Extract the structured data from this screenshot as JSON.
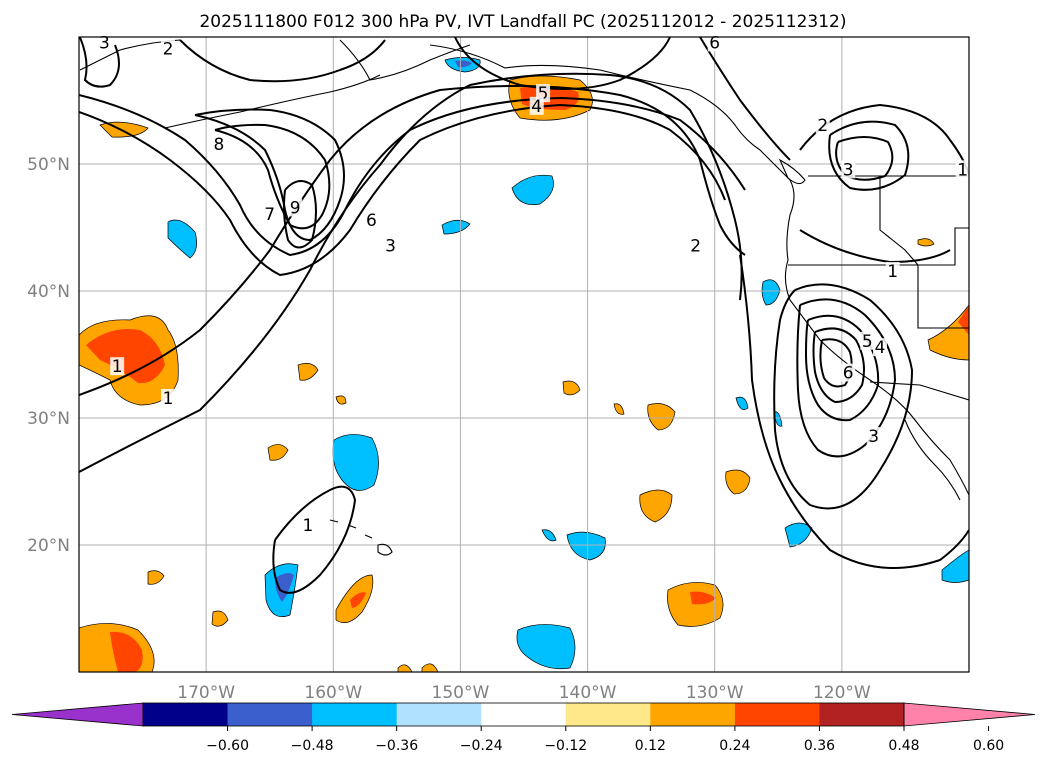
{
  "chart_data": {
    "type": "contour-map",
    "title": "2025111800 F012 300 hPa PV, IVT Landfall PC (2025112012 - 2025112312)",
    "map": {
      "lon_range": [
        -180,
        -110
      ],
      "lat_range": [
        10,
        60
      ],
      "lon_ticks": [
        -170,
        -160,
        -150,
        -140,
        -130,
        -120
      ],
      "lon_tick_labels": [
        "170°W",
        "160°W",
        "150°W",
        "140°W",
        "130°W",
        "120°W"
      ],
      "lat_ticks": [
        20,
        30,
        40,
        50
      ],
      "lat_tick_labels": [
        "20°N",
        "30°N",
        "40°N",
        "50°N"
      ],
      "grid": true
    },
    "colorbar": {
      "extend": "both",
      "bounds": [
        -0.6,
        -0.48,
        -0.36,
        -0.24,
        -0.12,
        0.12,
        0.24,
        0.36,
        0.48,
        0.6
      ],
      "tick_labels": [
        "−0.60",
        "−0.48",
        "−0.36",
        "−0.24",
        "−0.12",
        "0.12",
        "0.24",
        "0.36",
        "0.48",
        "0.60"
      ],
      "colors": [
        "#9932cc",
        "#00008b",
        "#3a5fcd",
        "#00bfff",
        "#b0e2ff",
        "#ffffff",
        "#ffe88a",
        "#ffa500",
        "#ff4500",
        "#b22222",
        "#ff82ab"
      ]
    },
    "contour_labels": [
      {
        "value": "2",
        "lon": -173,
        "lat": 59
      },
      {
        "value": "3",
        "lon": -178,
        "lat": 59.5
      },
      {
        "value": "8",
        "lon": -169,
        "lat": 51.5
      },
      {
        "value": "9",
        "lon": -163,
        "lat": 46.5
      },
      {
        "value": "7",
        "lon": -165,
        "lat": 46
      },
      {
        "value": "6",
        "lon": -157,
        "lat": 45.5
      },
      {
        "value": "3",
        "lon": -155.5,
        "lat": 43.5
      },
      {
        "value": "5",
        "lon": -143.5,
        "lat": 55.5
      },
      {
        "value": "4",
        "lon": -144,
        "lat": 54.5
      },
      {
        "value": "2",
        "lon": -131.5,
        "lat": 43.5
      },
      {
        "value": "1",
        "lon": -177,
        "lat": 34
      },
      {
        "value": "1",
        "lon": -173,
        "lat": 31.5
      },
      {
        "value": "1",
        "lon": -162,
        "lat": 21.5
      },
      {
        "value": "2",
        "lon": -121.5,
        "lat": 53
      },
      {
        "value": "3",
        "lon": -119.5,
        "lat": 49.5
      },
      {
        "value": "1",
        "lon": -110.5,
        "lat": 49.5
      },
      {
        "value": "1",
        "lon": -116,
        "lat": 41.5
      },
      {
        "value": "6",
        "lon": -119.5,
        "lat": 33.5
      },
      {
        "value": "5",
        "lon": -118,
        "lat": 36
      },
      {
        "value": "4",
        "lon": -117,
        "lat": 35.5
      },
      {
        "value": "3",
        "lon": -117.5,
        "lat": 28.5
      },
      {
        "value": "6",
        "lon": -130,
        "lat": 59.5
      }
    ]
  }
}
